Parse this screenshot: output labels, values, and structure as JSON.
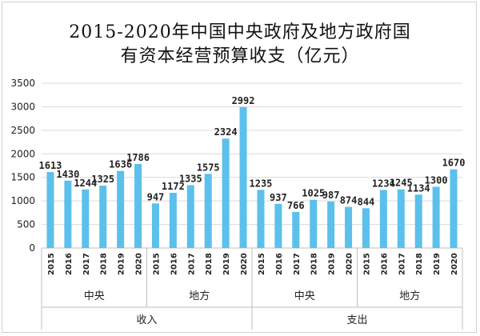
{
  "chart_data": {
    "type": "bar",
    "title": [
      "2015-2020年中国中央政府及地方政府国",
      "有资本经营预算收支（亿元）"
    ],
    "ylim": [
      0,
      3500
    ],
    "yticks": [
      0,
      500,
      1000,
      1500,
      2000,
      2500,
      3000,
      3500
    ],
    "grid": true,
    "bar_color": "#5BC0EB",
    "groups": [
      {
        "label": "收入",
        "subgroups": [
          {
            "label": "中央",
            "categories": [
              "2015",
              "2016",
              "2017",
              "2018",
              "2019",
              "2020"
            ],
            "values": [
              1613,
              1430,
              1244,
              1325,
              1636,
              1786
            ]
          },
          {
            "label": "地方",
            "categories": [
              "2015",
              "2016",
              "2017",
              "2018",
              "2019",
              "2020"
            ],
            "values": [
              947,
              1172,
              1335,
              1575,
              2324,
              2992
            ]
          }
        ]
      },
      {
        "label": "支出",
        "subgroups": [
          {
            "label": "中央",
            "categories": [
              "2015",
              "2016",
              "2017",
              "2018",
              "2019",
              "2020"
            ],
            "values": [
              1235,
              937,
              766,
              1025,
              987,
              874
            ]
          },
          {
            "label": "地方",
            "categories": [
              "2015",
              "2016",
              "2017",
              "2018",
              "2019",
              "2020"
            ],
            "values": [
              844,
              1234,
              1245,
              1134,
              1300,
              1670
            ]
          }
        ]
      }
    ]
  }
}
